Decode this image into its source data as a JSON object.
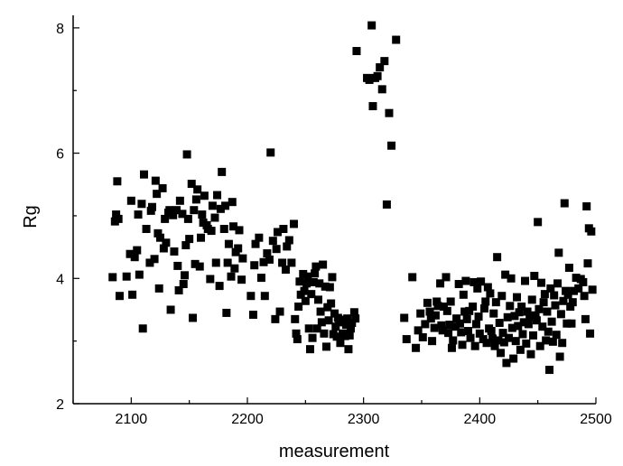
{
  "chart_data": {
    "type": "scatter",
    "title": "",
    "xlabel": "measurement",
    "ylabel": "Rg",
    "xlim": [
      2050,
      2500
    ],
    "ylim": [
      2,
      8.2
    ],
    "x_ticks": [
      2100,
      2200,
      2300,
      2400,
      2500
    ],
    "y_ticks": [
      2,
      4,
      6,
      8
    ],
    "x_tick_labels": [
      "2100",
      "2200",
      "2300",
      "2400",
      "2500"
    ],
    "y_tick_labels": [
      "2",
      "4",
      "6",
      "8"
    ],
    "grid": false,
    "legend": "none",
    "marker": "square",
    "marker_color": "#000000",
    "series": [
      {
        "points": [
          [
            2084,
            4.02
          ],
          [
            2086,
            4.91
          ],
          [
            2087,
            5.02
          ],
          [
            2088,
            5.55
          ],
          [
            2089,
            4.95
          ],
          [
            2090,
            3.72
          ],
          [
            2096,
            4.03
          ],
          [
            2099,
            4.39
          ],
          [
            2100,
            5.24
          ],
          [
            2101,
            3.74
          ],
          [
            2103,
            4.34
          ],
          [
            2105,
            4.45
          ],
          [
            2106,
            5.02
          ],
          [
            2107,
            4.06
          ],
          [
            2109,
            5.19
          ],
          [
            2110,
            3.2
          ],
          [
            2111,
            5.66
          ],
          [
            2113,
            4.79
          ],
          [
            2116,
            4.25
          ],
          [
            2117,
            5.08
          ],
          [
            2118,
            5.14
          ],
          [
            2120,
            4.31
          ],
          [
            2121,
            5.56
          ],
          [
            2122,
            5.35
          ],
          [
            2123,
            4.72
          ],
          [
            2124,
            3.84
          ],
          [
            2125,
            4.65
          ],
          [
            2127,
            5.44
          ],
          [
            2128,
            4.48
          ],
          [
            2129,
            4.95
          ],
          [
            2130,
            4.57
          ],
          [
            2132,
            5.05
          ],
          [
            2133,
            5.09
          ],
          [
            2134,
            3.5
          ],
          [
            2136,
            5.01
          ],
          [
            2137,
            4.43
          ],
          [
            2139,
            5.09
          ],
          [
            2140,
            4.2
          ],
          [
            2141,
            3.81
          ],
          [
            2142,
            5.24
          ],
          [
            2144,
            5.03
          ],
          [
            2145,
            3.91
          ],
          [
            2146,
            4.05
          ],
          [
            2147,
            4.53
          ],
          [
            2148,
            5.98
          ],
          [
            2149,
            4.95
          ],
          [
            2150,
            4.63
          ],
          [
            2152,
            5.51
          ],
          [
            2153,
            3.37
          ],
          [
            2154,
            5.09
          ],
          [
            2155,
            4.23
          ],
          [
            2156,
            5.26
          ],
          [
            2157,
            5.42
          ],
          [
            2159,
            4.19
          ],
          [
            2160,
            4.65
          ],
          [
            2161,
            5.02
          ],
          [
            2162,
            4.89
          ],
          [
            2163,
            5.32
          ],
          [
            2165,
            4.85
          ],
          [
            2166,
            4.79
          ],
          [
            2168,
            3.99
          ],
          [
            2169,
            4.76
          ],
          [
            2170,
            5.16
          ],
          [
            2172,
            4.97
          ],
          [
            2173,
            4.25
          ],
          [
            2174,
            5.33
          ],
          [
            2176,
            3.88
          ],
          [
            2177,
            5.11
          ],
          [
            2178,
            5.7
          ],
          [
            2180,
            4.79
          ],
          [
            2181,
            5.16
          ],
          [
            2182,
            3.45
          ],
          [
            2183,
            4.25
          ],
          [
            2184,
            4.55
          ],
          [
            2186,
            4.03
          ],
          [
            2187,
            5.22
          ],
          [
            2188,
            4.83
          ],
          [
            2189,
            4.16
          ],
          [
            2190,
            4.42
          ],
          [
            2192,
            4.48
          ],
          [
            2193,
            4.77
          ],
          [
            2195,
            3.98
          ],
          [
            2196,
            4.32
          ],
          [
            2203,
            3.72
          ],
          [
            2205,
            3.42
          ],
          [
            2206,
            4.21
          ],
          [
            2207,
            4.55
          ],
          [
            2210,
            4.65
          ],
          [
            2212,
            4.01
          ],
          [
            2214,
            4.26
          ],
          [
            2215,
            3.72
          ],
          [
            2217,
            4.4
          ],
          [
            2219,
            4.3
          ],
          [
            2220,
            6.01
          ],
          [
            2222,
            4.6
          ],
          [
            2224,
            3.35
          ],
          [
            2225,
            4.47
          ],
          [
            2226,
            4.74
          ],
          [
            2228,
            3.47
          ],
          [
            2230,
            4.25
          ],
          [
            2231,
            4.79
          ],
          [
            2233,
            4.14
          ],
          [
            2234,
            4.51
          ],
          [
            2236,
            4.61
          ],
          [
            2238,
            4.25
          ],
          [
            2240,
            4.87
          ],
          [
            2241,
            3.35
          ],
          [
            2242,
            3.12
          ],
          [
            2243,
            3.03
          ],
          [
            2244,
            3.55
          ],
          [
            2245,
            3.95
          ],
          [
            2246,
            3.74
          ],
          [
            2248,
            4.07
          ],
          [
            2249,
            3.8
          ],
          [
            2250,
            3.64
          ],
          [
            2251,
            3.92
          ],
          [
            2252,
            4.03
          ],
          [
            2253,
            3.2
          ],
          [
            2254,
            2.87
          ],
          [
            2255,
            3.75
          ],
          [
            2256,
            3.05
          ],
          [
            2257,
            3.94
          ],
          [
            2258,
            4.08
          ],
          [
            2259,
            4.19
          ],
          [
            2260,
            3.2
          ],
          [
            2261,
            3.66
          ],
          [
            2262,
            3.92
          ],
          [
            2263,
            3.47
          ],
          [
            2264,
            3.3
          ],
          [
            2265,
            4.22
          ],
          [
            2266,
            3.12
          ],
          [
            2267,
            3.87
          ],
          [
            2268,
            2.91
          ],
          [
            2269,
            3.54
          ],
          [
            2270,
            3.33
          ],
          [
            2271,
            3.86
          ],
          [
            2272,
            3.6
          ],
          [
            2273,
            4.02
          ],
          [
            2274,
            3.11
          ],
          [
            2275,
            3.44
          ],
          [
            2276,
            3.23
          ],
          [
            2277,
            3.07
          ],
          [
            2278,
            3.37
          ],
          [
            2279,
            3.3
          ],
          [
            2280,
            2.97
          ],
          [
            2281,
            3.31
          ],
          [
            2282,
            3.12
          ],
          [
            2283,
            3.34
          ],
          [
            2284,
            3.08
          ],
          [
            2285,
            3.26
          ],
          [
            2286,
            3.36
          ],
          [
            2287,
            2.87
          ],
          [
            2288,
            3.09
          ],
          [
            2289,
            3.2
          ],
          [
            2290,
            3.29
          ],
          [
            2292,
            3.46
          ],
          [
            2293,
            3.36
          ],
          [
            2294,
            7.63
          ],
          [
            2303,
            7.2
          ],
          [
            2305,
            7.17
          ],
          [
            2307,
            8.04
          ],
          [
            2308,
            6.75
          ],
          [
            2310,
            7.2
          ],
          [
            2312,
            7.23
          ],
          [
            2314,
            7.37
          ],
          [
            2316,
            7.02
          ],
          [
            2318,
            7.47
          ],
          [
            2320,
            5.18
          ],
          [
            2322,
            6.64
          ],
          [
            2324,
            6.12
          ],
          [
            2328,
            7.81
          ],
          [
            2335,
            3.37
          ],
          [
            2337,
            3.03
          ],
          [
            2342,
            4.02
          ],
          [
            2345,
            2.89
          ],
          [
            2347,
            3.17
          ],
          [
            2349,
            3.44
          ],
          [
            2351,
            3.06
          ],
          [
            2353,
            3.27
          ],
          [
            2355,
            3.61
          ],
          [
            2357,
            3.47
          ],
          [
            2358,
            3.36
          ],
          [
            2359,
            3.0
          ],
          [
            2361,
            3.21
          ],
          [
            2362,
            3.41
          ],
          [
            2363,
            3.63
          ],
          [
            2364,
            3.56
          ],
          [
            2366,
            3.92
          ],
          [
            2367,
            3.25
          ],
          [
            2368,
            3.17
          ],
          [
            2369,
            3.55
          ],
          [
            2371,
            4.02
          ],
          [
            2372,
            3.48
          ],
          [
            2373,
            3.13
          ],
          [
            2374,
            3.26
          ],
          [
            2375,
            3.63
          ],
          [
            2376,
            2.89
          ],
          [
            2377,
            3.01
          ],
          [
            2379,
            3.23
          ],
          [
            2380,
            3.36
          ],
          [
            2382,
            3.91
          ],
          [
            2383,
            3.28
          ],
          [
            2384,
            3.14
          ],
          [
            2385,
            2.94
          ],
          [
            2386,
            3.74
          ],
          [
            2387,
            3.47
          ],
          [
            2388,
            3.96
          ],
          [
            2389,
            3.35
          ],
          [
            2390,
            3.16
          ],
          [
            2391,
            3.48
          ],
          [
            2392,
            3.05
          ],
          [
            2394,
            3.55
          ],
          [
            2395,
            3.94
          ],
          [
            2396,
            2.92
          ],
          [
            2397,
            3.27
          ],
          [
            2398,
            3.84
          ],
          [
            2399,
            3.39
          ],
          [
            2400,
            3.12
          ],
          [
            2401,
            3.95
          ],
          [
            2403,
            3.03
          ],
          [
            2404,
            3.52
          ],
          [
            2405,
            3.63
          ],
          [
            2406,
            2.97
          ],
          [
            2407,
            3.86
          ],
          [
            2408,
            3.2
          ],
          [
            2409,
            3.76
          ],
          [
            2410,
            3.16
          ],
          [
            2411,
            3.04
          ],
          [
            2412,
            3.44
          ],
          [
            2413,
            2.92
          ],
          [
            2414,
            3.62
          ],
          [
            2415,
            4.34
          ],
          [
            2416,
            3.01
          ],
          [
            2417,
            3.29
          ],
          [
            2418,
            2.81
          ],
          [
            2419,
            3.72
          ],
          [
            2420,
            3.13
          ],
          [
            2421,
            2.98
          ],
          [
            2422,
            4.06
          ],
          [
            2423,
            2.65
          ],
          [
            2424,
            3.38
          ],
          [
            2425,
            3.05
          ],
          [
            2426,
            3.56
          ],
          [
            2427,
            4.0
          ],
          [
            2428,
            3.21
          ],
          [
            2429,
            2.72
          ],
          [
            2430,
            3.4
          ],
          [
            2431,
            3.0
          ],
          [
            2432,
            3.7
          ],
          [
            2433,
            3.24
          ],
          [
            2434,
            3.46
          ],
          [
            2435,
            2.86
          ],
          [
            2436,
            3.55
          ],
          [
            2437,
            3.11
          ],
          [
            2438,
            3.3
          ],
          [
            2439,
            3.96
          ],
          [
            2440,
            2.96
          ],
          [
            2441,
            3.47
          ],
          [
            2442,
            3.27
          ],
          [
            2443,
            3.39
          ],
          [
            2444,
            2.79
          ],
          [
            2445,
            3.66
          ],
          [
            2446,
            3.09
          ],
          [
            2447,
            4.04
          ],
          [
            2448,
            3.41
          ],
          [
            2449,
            3.33
          ],
          [
            2450,
            4.9
          ],
          [
            2451,
            3.51
          ],
          [
            2452,
            2.92
          ],
          [
            2453,
            3.93
          ],
          [
            2454,
            3.23
          ],
          [
            2455,
            3.62
          ],
          [
            2456,
            3.75
          ],
          [
            2457,
            3.01
          ],
          [
            2458,
            3.47
          ],
          [
            2459,
            3.15
          ],
          [
            2460,
            2.54
          ],
          [
            2461,
            3.84
          ],
          [
            2462,
            3.31
          ],
          [
            2463,
            2.99
          ],
          [
            2464,
            3.73
          ],
          [
            2465,
            3.57
          ],
          [
            2466,
            3.1
          ],
          [
            2467,
            3.92
          ],
          [
            2468,
            4.41
          ],
          [
            2469,
            2.75
          ],
          [
            2470,
            3.43
          ],
          [
            2471,
            2.97
          ],
          [
            2472,
            3.64
          ],
          [
            2473,
            5.2
          ],
          [
            2474,
            3.8
          ],
          [
            2475,
            3.28
          ],
          [
            2476,
            3.74
          ],
          [
            2477,
            4.17
          ],
          [
            2478,
            3.55
          ],
          [
            2479,
            3.28
          ],
          [
            2480,
            3.62
          ],
          [
            2481,
            3.8
          ],
          [
            2483,
            4.01
          ],
          [
            2485,
            3.84
          ],
          [
            2487,
            3.99
          ],
          [
            2489,
            3.94
          ],
          [
            2490,
            3.72
          ],
          [
            2491,
            3.35
          ],
          [
            2492,
            5.15
          ],
          [
            2493,
            4.24
          ],
          [
            2494,
            4.8
          ],
          [
            2495,
            3.12
          ],
          [
            2496,
            4.75
          ],
          [
            2497,
            3.82
          ]
        ]
      }
    ]
  }
}
